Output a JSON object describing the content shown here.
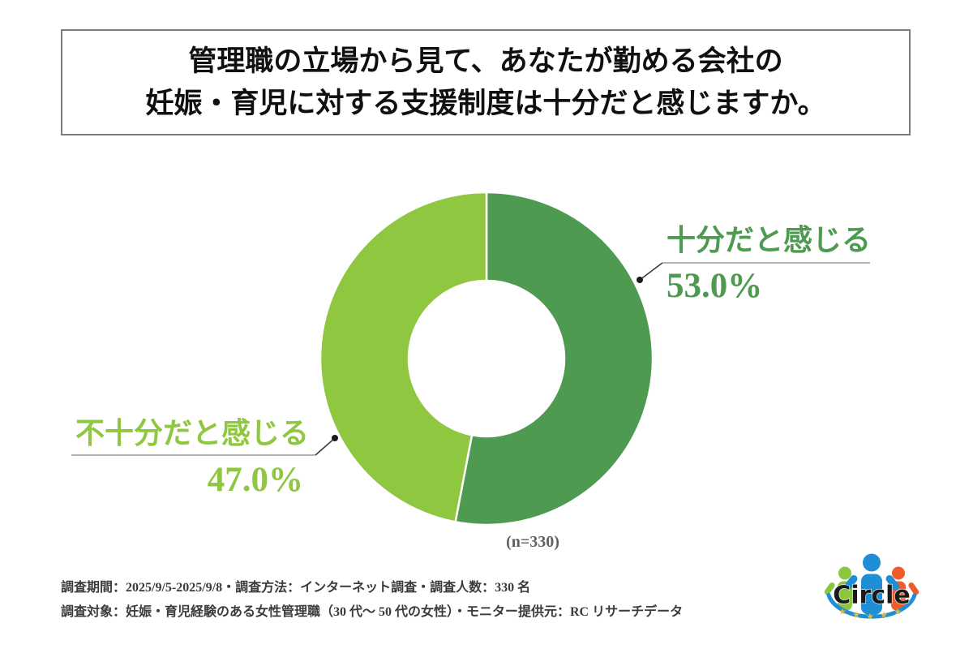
{
  "title": {
    "line1": "管理職の立場から見て、あなたが勤める会社の",
    "line2": "妊娠・育児に対する支援制度は十分だと感じますか。"
  },
  "chart_data": {
    "type": "pie",
    "donut": true,
    "title": "管理職の立場から見て、あなたが勤める会社の妊娠・育児に対する支援制度は十分だと感じますか。",
    "start_angle_deg": 0,
    "direction": "clockwise",
    "sample_label": "(n=330)",
    "sample_size": 330,
    "legend_position": "callout-labels",
    "segments": [
      {
        "label": "十分だと感じる",
        "value": 53.0,
        "display": "53.0%",
        "color": "#4e9a50"
      },
      {
        "label": "不十分だと感じる",
        "value": 47.0,
        "display": "47.0%",
        "color": "#8fc740"
      }
    ]
  },
  "footer": {
    "line1": "調査期間：2025/9/5-2025/9/8・調査方法：インターネット調査・調査人数：330 名",
    "line2": "調査対象：妊娠・育児経験のある女性管理職（30 代〜 50 代の女性）・モニター提供元：RC リサーチデータ"
  },
  "logo": {
    "text": "Circle",
    "star_glyph": "★",
    "colors": {
      "left_person": "#8cc63f",
      "center_person": "#1e8fd5",
      "right_person": "#f15a29",
      "arc": "#1e8fd5",
      "star": "#f0b929",
      "text": "#1a1a1a"
    }
  }
}
